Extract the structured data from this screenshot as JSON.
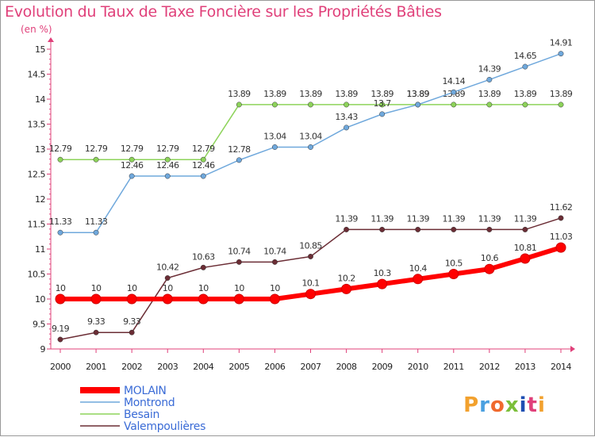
{
  "title": "Evolution du Taux de Taxe Foncière sur les Propriétés Bâties",
  "unit": "(en %)",
  "logo": "Proxiti",
  "chart_data": {
    "type": "line",
    "x": [
      2000,
      2001,
      2002,
      2003,
      2004,
      2005,
      2006,
      2007,
      2008,
      2009,
      2010,
      2011,
      2012,
      2013,
      2014
    ],
    "ylim": [
      9,
      15
    ],
    "yticks": [
      "9",
      "9.5",
      "10",
      "10.5",
      "11",
      "11.5",
      "12",
      "12.5",
      "13",
      "13.5",
      "14",
      "14.5",
      "15"
    ],
    "grid": false,
    "legend": "bottom-left",
    "series": [
      {
        "name": "Besain",
        "color": "#8dd35a",
        "values": [
          12.79,
          12.79,
          12.79,
          12.79,
          12.79,
          13.89,
          13.89,
          13.89,
          13.89,
          13.89,
          13.89,
          13.89,
          13.89,
          13.89,
          13.89
        ],
        "labels": [
          "12.79",
          "12.79",
          "12.79",
          "12.79",
          "12.79",
          "13.89",
          "13.89",
          "13.89",
          "13.89",
          "13.89",
          "13.89",
          "13.89",
          "13.89",
          "13.89",
          "13.89"
        ]
      },
      {
        "name": "Montrond",
        "color": "#6fa8dc",
        "values": [
          11.33,
          11.33,
          12.46,
          12.46,
          12.46,
          12.78,
          13.04,
          13.04,
          13.43,
          13.7,
          13.89,
          14.14,
          14.39,
          14.65,
          14.91
        ],
        "labels": [
          "11.33",
          "11.33",
          "12.46",
          "12.46",
          "12.46",
          "12.78",
          "13.04",
          "13.04",
          "13.43",
          "13.7",
          "13.89",
          "14.14",
          "14.39",
          "14.65",
          "14.91"
        ]
      },
      {
        "name": "Valempoulières",
        "color": "#6b2d35",
        "values": [
          9.19,
          9.33,
          9.33,
          10.42,
          10.63,
          10.74,
          10.74,
          10.85,
          11.39,
          11.39,
          11.39,
          11.39,
          11.39,
          11.39,
          11.62
        ],
        "labels": [
          "9.19",
          "9.33",
          "9.33",
          "10.42",
          "10.63",
          "10.74",
          "10.74",
          "10.85",
          "11.39",
          "11.39",
          "11.39",
          "11.39",
          "11.39",
          "11.39",
          "11.62"
        ]
      },
      {
        "name": "MOLAIN",
        "color": "#ff0000",
        "values": [
          10,
          10,
          10,
          10,
          10,
          10,
          10,
          10.1,
          10.2,
          10.3,
          10.4,
          10.5,
          10.6,
          10.81,
          11.03
        ],
        "labels": [
          "10",
          "10",
          "10",
          "10",
          "10",
          "10",
          "10",
          "10.1",
          "10.2",
          "10.3",
          "10.4",
          "10.5",
          "10.6",
          "10.81",
          "11.03"
        ]
      }
    ],
    "legend_order": [
      "MOLAIN",
      "Montrond",
      "Besain",
      "Valempoulières"
    ]
  }
}
